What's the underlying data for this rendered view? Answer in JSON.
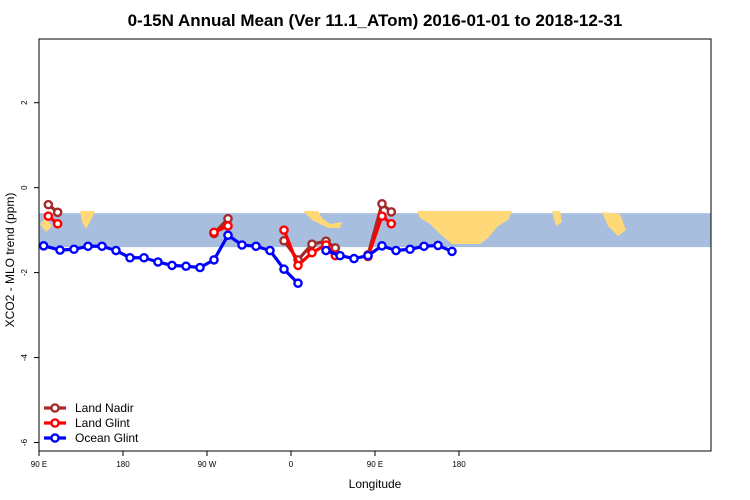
{
  "chart_data": {
    "type": "line",
    "title": "0-15N Annual Mean (Ver 11.1_ATom)   2016-01-01 to 2018-12-31",
    "xlabel": "Longitude",
    "ylabel": "XCO2 - MLO trend (ppm)",
    "xlim": [
      0,
      720
    ],
    "ylim": [
      -6.2,
      3.5
    ],
    "x_ticks": [
      {
        "value": 0,
        "label": "90 E"
      },
      {
        "value": 90,
        "label": "180"
      },
      {
        "value": 180,
        "label": "90 W"
      },
      {
        "value": 270,
        "label": "0"
      },
      {
        "value": 360,
        "label": "90 E"
      },
      {
        "value": 450,
        "label": "180"
      }
    ],
    "y_ticks": [
      {
        "value": -6,
        "label": "-6"
      },
      {
        "value": -4,
        "label": "-4"
      },
      {
        "value": -2,
        "label": "-2"
      },
      {
        "value": 0,
        "label": "0"
      },
      {
        "value": 2,
        "label": "2"
      }
    ],
    "band": {
      "ymin": -1.4,
      "ymax": -0.6,
      "color": "#a7bedf",
      "land_color": "#ffd878"
    },
    "legend_position": "bottom-left",
    "series": [
      {
        "name": "Land Nadir",
        "color": "#a52a2a",
        "segments": [
          [
            [
              10,
              -0.4
            ],
            [
              20,
              -0.58
            ]
          ],
          [
            [
              187.5,
              -1.08
            ],
            [
              202.5,
              -0.73
            ]
          ],
          [
            [
              262.5,
              -1.25
            ],
            [
              277.5,
              -1.7
            ],
            [
              292.5,
              -1.33
            ],
            [
              307.5,
              -1.26
            ],
            [
              317.5,
              -1.42
            ]
          ],
          [
            [
              352.5,
              -1.58
            ],
            [
              367.5,
              -0.38
            ],
            [
              377.5,
              -0.57
            ]
          ]
        ]
      },
      {
        "name": "Land Glint",
        "color": "#ff0000",
        "segments": [
          [
            [
              10,
              -0.67
            ],
            [
              20,
              -0.85
            ]
          ],
          [
            [
              187.5,
              -1.05
            ],
            [
              202.5,
              -0.9
            ]
          ],
          [
            [
              262.5,
              -1.0
            ],
            [
              277.5,
              -1.83
            ],
            [
              292.5,
              -1.53
            ],
            [
              307.5,
              -1.35
            ],
            [
              317.5,
              -1.6
            ]
          ],
          [
            [
              352.5,
              -1.62
            ],
            [
              367.5,
              -0.67
            ],
            [
              377.5,
              -0.85
            ]
          ]
        ]
      },
      {
        "name": "Ocean Glint",
        "color": "#0000ff",
        "segments": [
          [
            [
              5,
              -1.37
            ],
            [
              22.5,
              -1.47
            ],
            [
              37.5,
              -1.45
            ],
            [
              52.5,
              -1.38
            ],
            [
              67.5,
              -1.38
            ],
            [
              82.5,
              -1.48
            ],
            [
              97.5,
              -1.65
            ],
            [
              112.5,
              -1.65
            ],
            [
              127.5,
              -1.75
            ],
            [
              142.5,
              -1.83
            ],
            [
              157.5,
              -1.85
            ],
            [
              172.5,
              -1.88
            ],
            [
              187.5,
              -1.7
            ],
            [
              202.5,
              -1.12
            ],
            [
              217.5,
              -1.35
            ],
            [
              232.5,
              -1.38
            ],
            [
              247.5,
              -1.48
            ],
            [
              262.5,
              -1.92
            ],
            [
              277.5,
              -2.25
            ]
          ],
          [
            [
              307.5,
              -1.48
            ],
            [
              322.5,
              -1.6
            ],
            [
              337.5,
              -1.67
            ],
            [
              352.5,
              -1.6
            ],
            [
              367.5,
              -1.37
            ],
            [
              382.5,
              -1.48
            ],
            [
              397.5,
              -1.45
            ],
            [
              412.5,
              -1.38
            ],
            [
              427.5,
              -1.36
            ],
            [
              442.5,
              -1.5
            ]
          ]
        ]
      }
    ]
  }
}
